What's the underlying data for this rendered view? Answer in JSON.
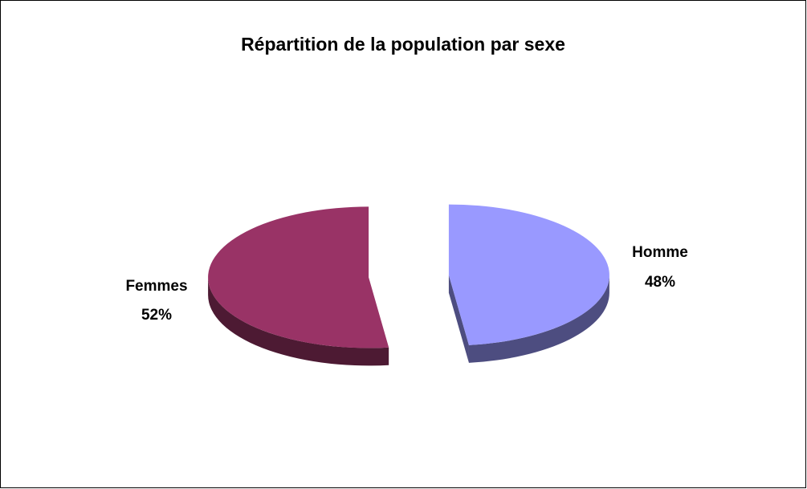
{
  "chart_data": {
    "type": "pie3d",
    "title": "Répartition de la population par sexe",
    "categories": [
      "Homme",
      "Femmes"
    ],
    "values": [
      48,
      52
    ],
    "value_labels": [
      "48%",
      "52%"
    ],
    "colors": [
      "#9999ff",
      "#993366"
    ],
    "side_colors": [
      "#4d4d80",
      "#4d1a33"
    ]
  }
}
